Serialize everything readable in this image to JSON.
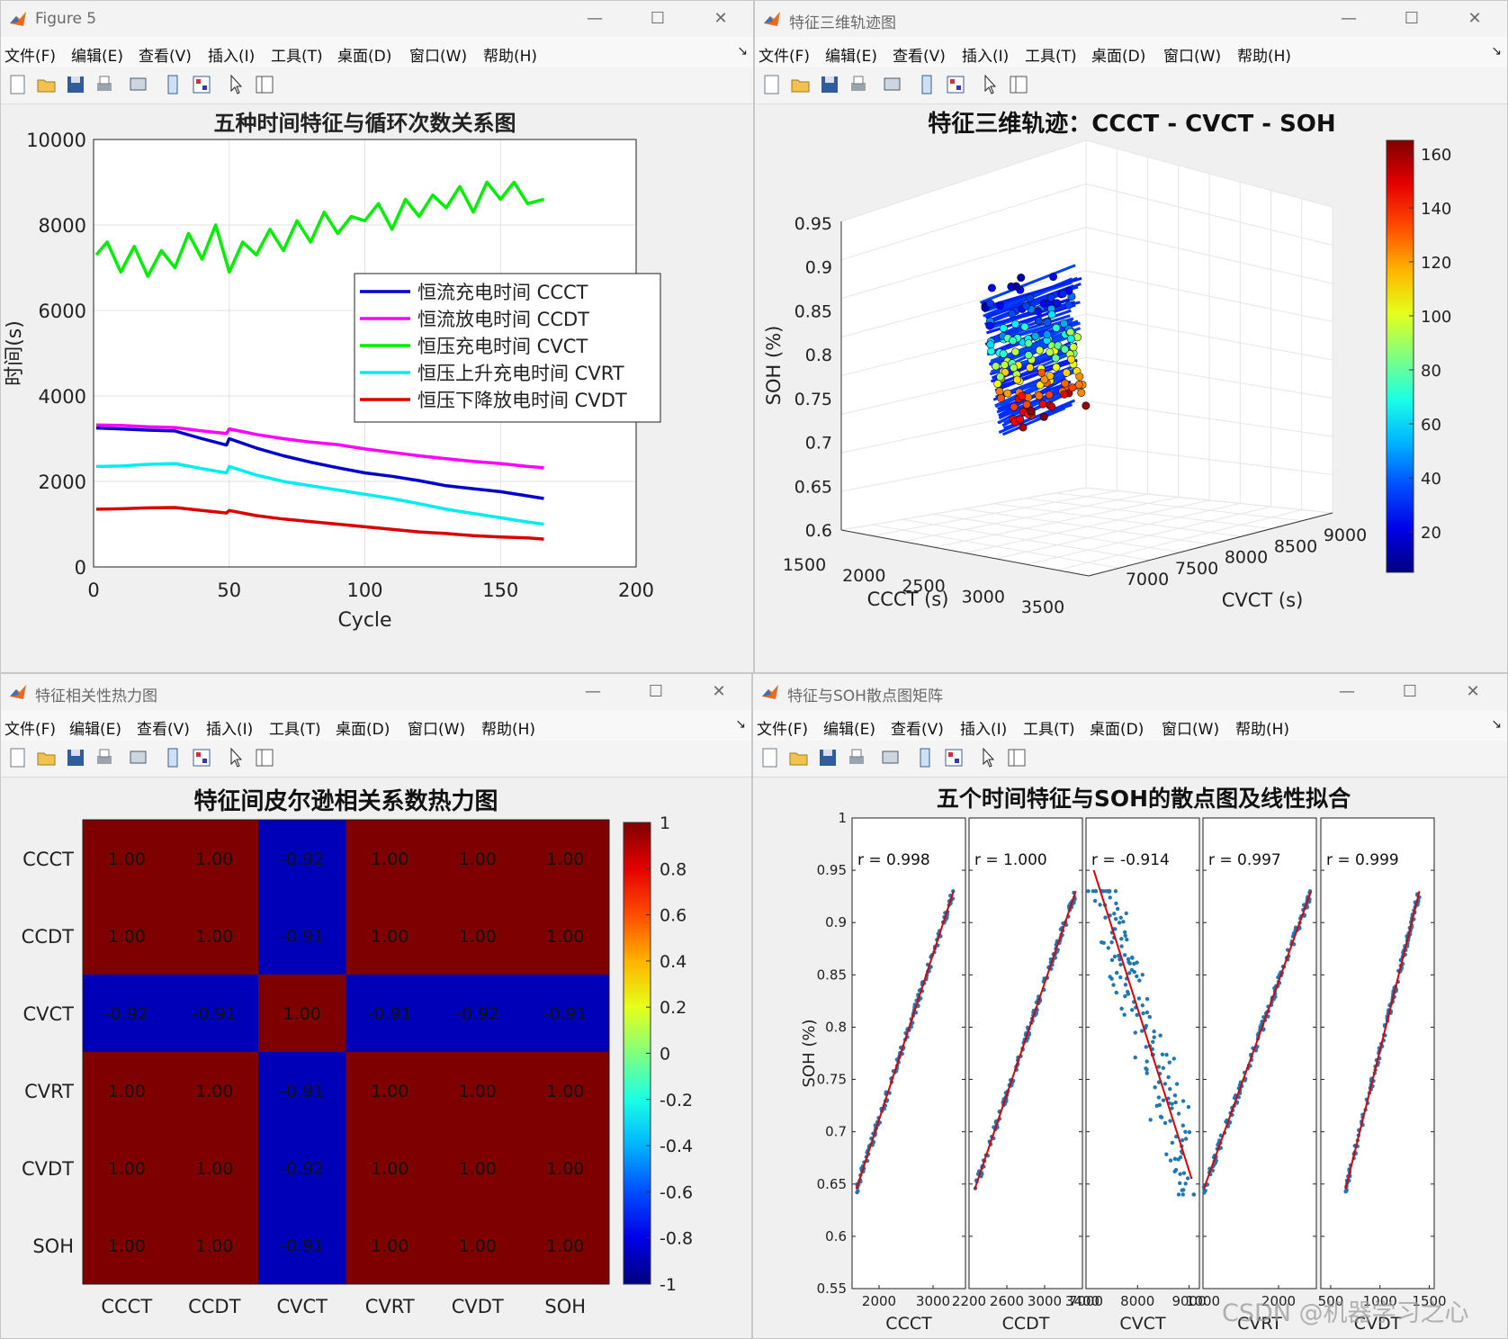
{
  "windows": [
    {
      "title": "Figure 5"
    },
    {
      "title": "特征三维轨迹图"
    },
    {
      "title": "特征相关性热力图"
    },
    {
      "title": "特征与SOH散点图矩阵"
    }
  ],
  "menu": [
    "文件(F)",
    "编辑(E)",
    "查看(V)",
    "插入(I)",
    "工具(T)",
    "桌面(D)",
    "窗口(W)",
    "帮助(H)"
  ],
  "toolbar_icons": [
    "new-file-icon",
    "open-folder-icon",
    "save-icon",
    "print-icon",
    "link-plot-icon",
    "dock-figure-icon",
    "property-icon",
    "pointer-icon",
    "panel-icon"
  ],
  "watermark": "CSDN @机器学习之心",
  "chart_data": [
    {
      "type": "line",
      "title": "五种时间特征与循环次数关系图",
      "xlabel": "Cycle",
      "ylabel": "时间(s)",
      "xlim": [
        0,
        200
      ],
      "ylim": [
        0,
        10000
      ],
      "xticks": [
        0,
        50,
        100,
        150,
        200
      ],
      "yticks": [
        0,
        2000,
        4000,
        6000,
        8000,
        10000
      ],
      "grid": true,
      "legend_position": "top-right",
      "series": [
        {
          "name": "恒流充电时间 CCCT",
          "color": "#0000cc",
          "x": [
            1,
            10,
            20,
            30,
            40,
            49,
            50,
            60,
            70,
            80,
            90,
            100,
            110,
            120,
            130,
            140,
            150,
            160,
            166
          ],
          "values": [
            3250,
            3230,
            3200,
            3180,
            3000,
            2850,
            3000,
            2780,
            2600,
            2450,
            2320,
            2200,
            2120,
            2020,
            1900,
            1830,
            1760,
            1660,
            1600
          ]
        },
        {
          "name": "恒流放电时间 CCDT",
          "color": "#ff00ff",
          "x": [
            1,
            10,
            20,
            30,
            40,
            49,
            50,
            60,
            70,
            80,
            90,
            100,
            110,
            120,
            130,
            140,
            150,
            160,
            166
          ],
          "values": [
            3320,
            3310,
            3280,
            3260,
            3180,
            3120,
            3230,
            3100,
            3000,
            2920,
            2860,
            2760,
            2680,
            2600,
            2530,
            2470,
            2420,
            2350,
            2320
          ]
        },
        {
          "name": "恒压充电时间 CVCT",
          "color": "#00ee00",
          "x": [
            1,
            5,
            10,
            15,
            20,
            25,
            30,
            35,
            40,
            45,
            50,
            55,
            60,
            65,
            70,
            75,
            80,
            85,
            90,
            95,
            100,
            105,
            110,
            115,
            120,
            125,
            130,
            135,
            140,
            145,
            150,
            155,
            160,
            166
          ],
          "values": [
            7300,
            7600,
            6900,
            7500,
            6800,
            7400,
            7000,
            7800,
            7200,
            8000,
            6900,
            7600,
            7300,
            7900,
            7400,
            8100,
            7600,
            8300,
            7800,
            8200,
            8100,
            8500,
            7900,
            8600,
            8200,
            8700,
            8400,
            8900,
            8300,
            9000,
            8600,
            9000,
            8500,
            8600
          ]
        },
        {
          "name": "恒压上升充电时间 CVRT",
          "color": "#00eeee",
          "x": [
            1,
            10,
            20,
            30,
            40,
            49,
            50,
            60,
            70,
            80,
            90,
            100,
            110,
            120,
            130,
            140,
            150,
            160,
            166
          ],
          "values": [
            2350,
            2360,
            2400,
            2420,
            2300,
            2200,
            2350,
            2150,
            2000,
            1900,
            1800,
            1700,
            1600,
            1480,
            1350,
            1250,
            1150,
            1050,
            1000
          ]
        },
        {
          "name": "恒压下降放电时间 CVDT",
          "color": "#dd0000",
          "x": [
            1,
            10,
            20,
            30,
            40,
            49,
            50,
            60,
            70,
            80,
            90,
            100,
            110,
            120,
            130,
            140,
            150,
            160,
            166
          ],
          "values": [
            1350,
            1360,
            1380,
            1390,
            1320,
            1260,
            1320,
            1200,
            1120,
            1060,
            1000,
            940,
            880,
            820,
            780,
            730,
            700,
            680,
            650
          ]
        }
      ]
    },
    {
      "type": "scatter",
      "title": "特征三维轨迹：CCCT - CVCT - SOH",
      "xlabel": "CCCT (s)",
      "ylabel": "CVCT (s)",
      "zlabel": "SOH (%)",
      "xticks": [
        1500,
        2000,
        2500,
        3000,
        3500
      ],
      "yticks": [
        7000,
        7500,
        8000,
        8500,
        9000
      ],
      "zticks": [
        0.6,
        0.65,
        0.7,
        0.75,
        0.8,
        0.85,
        0.9,
        0.95
      ],
      "colorbar_ticks": [
        20,
        40,
        60,
        80,
        100,
        120,
        140,
        160
      ],
      "colorbar_label": "",
      "grid": true
    },
    {
      "type": "heatmap",
      "title": "特征间皮尔逊相关系数热力图",
      "labels": [
        "CCCT",
        "CCDT",
        "CVCT",
        "CVRT",
        "CVDT",
        "SOH"
      ],
      "matrix": [
        [
          1.0,
          1.0,
          -0.92,
          1.0,
          1.0,
          1.0
        ],
        [
          1.0,
          1.0,
          -0.91,
          1.0,
          1.0,
          1.0
        ],
        [
          -0.92,
          -0.91,
          1.0,
          -0.91,
          -0.92,
          -0.91
        ],
        [
          1.0,
          1.0,
          -0.91,
          1.0,
          1.0,
          1.0
        ],
        [
          1.0,
          1.0,
          -0.92,
          1.0,
          1.0,
          1.0
        ],
        [
          1.0,
          1.0,
          -0.91,
          1.0,
          1.0,
          1.0
        ]
      ],
      "colorbar_ticks": [
        "1",
        "0.8",
        "0.6",
        "0.4",
        "0.2",
        "0",
        "-0.2",
        "-0.4",
        "-0.6",
        "-0.8",
        "-1"
      ]
    },
    {
      "type": "scatter",
      "title": "五个时间特征与SOH的散点图及线性拟合",
      "ylabel": "SOH (%)",
      "ylim": [
        0.55,
        1
      ],
      "yticks": [
        0.55,
        0.6,
        0.65,
        0.7,
        0.75,
        0.8,
        0.85,
        0.9,
        0.95,
        1
      ],
      "panels": [
        {
          "xlabel": "CCCT",
          "r": "r = 0.998",
          "xlim": [
            1500,
            3600
          ],
          "xticks": [
            "2000",
            "3000"
          ],
          "fit": [
            [
              1580,
              0.645
            ],
            [
              3380,
              0.93
            ]
          ]
        },
        {
          "xlabel": "CCDT",
          "r": "r = 1.000",
          "xlim": [
            2200,
            3400
          ],
          "xticks": [
            "2200",
            "2600",
            "3000",
            "3400"
          ],
          "fit": [
            [
              2260,
              0.645
            ],
            [
              3330,
              0.93
            ]
          ]
        },
        {
          "xlabel": "CVCT",
          "r": "r = -0.914",
          "xlim": [
            7000,
            9200
          ],
          "xticks": [
            "7000",
            "8000",
            "9000"
          ],
          "fit": [
            [
              7150,
              0.95
            ],
            [
              9050,
              0.655
            ]
          ]
        },
        {
          "xlabel": "CVRT",
          "r": "r = 0.997",
          "xlim": [
            1000,
            2500
          ],
          "xticks": [
            "1000",
            "2000"
          ],
          "fit": [
            [
              1010,
              0.645
            ],
            [
              2430,
              0.93
            ]
          ]
        },
        {
          "xlabel": "CVDT",
          "r": "r = 0.999",
          "xlim": [
            400,
            1550
          ],
          "xticks": [
            "500",
            "1000",
            "1500"
          ],
          "fit": [
            [
              650,
              0.645
            ],
            [
              1400,
              0.93
            ]
          ]
        }
      ]
    }
  ]
}
